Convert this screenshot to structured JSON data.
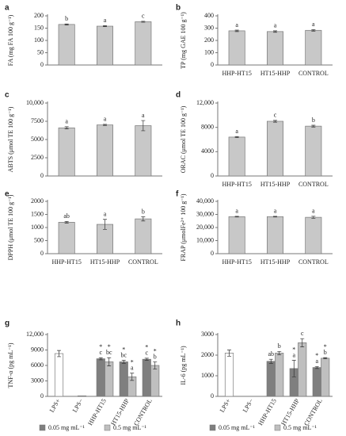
{
  "chart_data": [
    {
      "type": "bar",
      "panel": "a",
      "ylabel": "FA (mg FA 100 g⁻¹)",
      "categories": [
        null,
        null,
        null
      ],
      "ylim": [
        0,
        200
      ],
      "yticks": [
        0,
        50,
        100,
        150,
        200
      ],
      "series": [
        {
          "color": "#c8c8c8",
          "values": [
            165,
            158,
            176
          ],
          "errors": [
            2,
            2,
            2
          ],
          "letters": [
            "b",
            "a",
            "c"
          ]
        }
      ]
    },
    {
      "type": "bar",
      "panel": "b",
      "ylabel": "TP (mg GAE 100 g⁻¹)",
      "categories": [
        "HHP-HT15",
        "HT15-HHP",
        "CONTROL"
      ],
      "ylim": [
        0,
        400
      ],
      "yticks": [
        0,
        100,
        200,
        300,
        400
      ],
      "series": [
        {
          "color": "#c8c8c8",
          "values": [
            278,
            272,
            282
          ],
          "errors": [
            6,
            6,
            6
          ],
          "letters": [
            "a",
            "a",
            "a"
          ]
        }
      ]
    },
    {
      "type": "bar",
      "panel": "c",
      "ylabel": "ABTS (μmol TE 100 g⁻¹)",
      "categories": [
        null,
        null,
        null
      ],
      "ylim": [
        0,
        10000
      ],
      "yticks": [
        0,
        2500,
        5000,
        7500,
        {
          "value": 10000,
          "label": "10,000"
        }
      ],
      "series": [
        {
          "color": "#c8c8c8",
          "values": [
            6600,
            7000,
            6900
          ],
          "errors": [
            150,
            80,
            700
          ],
          "letters": [
            "a",
            "a",
            "a"
          ]
        }
      ]
    },
    {
      "type": "bar",
      "panel": "d",
      "ylabel": "ORAC (μmol TE 100 g⁻¹)",
      "categories": [
        "HHP-HT15",
        "HT15-HHP",
        "CONTROL"
      ],
      "ylim": [
        0,
        12000
      ],
      "yticks": [
        0,
        4000,
        8000,
        {
          "value": 12000,
          "label": "12,000"
        }
      ],
      "series": [
        {
          "color": "#c8c8c8",
          "values": [
            6400,
            9000,
            8200
          ],
          "errors": [
            100,
            150,
            150
          ],
          "letters": [
            "a",
            "c",
            "b"
          ]
        }
      ]
    },
    {
      "type": "bar",
      "panel": "e",
      "ylabel": "DPPH (μmol TE 100 g⁻¹)",
      "categories": [
        "HHP-HT15",
        "HT15-HHP",
        "CONTROL"
      ],
      "ylim": [
        0,
        2000
      ],
      "yticks": [
        0,
        500,
        1000,
        1500,
        2000
      ],
      "series": [
        {
          "color": "#c8c8c8",
          "values": [
            1200,
            1120,
            1330
          ],
          "errors": [
            30,
            190,
            80
          ],
          "letters": [
            "ab",
            "a",
            "b"
          ]
        }
      ]
    },
    {
      "type": "bar",
      "panel": "f",
      "ylabel": "FRAP (μmolFe²⁺ 100 g⁻¹)",
      "categories": [
        "HHP-HT15",
        "HT15-HHP",
        "CONTROL"
      ],
      "ylim": [
        0,
        40000
      ],
      "yticks": [
        0,
        {
          "value": 10000,
          "label": "10,000"
        },
        {
          "value": 20000,
          "label": "20,000"
        },
        {
          "value": 30000,
          "label": "30,000"
        },
        {
          "value": 40000,
          "label": "40,000"
        }
      ],
      "series": [
        {
          "color": "#c8c8c8",
          "values": [
            28300,
            28300,
            27800
          ],
          "errors": [
            300,
            300,
            800
          ],
          "letters": [
            "a",
            "a",
            "a"
          ]
        }
      ]
    },
    {
      "type": "bar",
      "panel": "g",
      "ylabel": "TNF-α (pg mL⁻¹)",
      "categories": [
        "LPS+",
        "LPS−",
        "HHP-HT15",
        "HT15-HHP",
        "CONTROL"
      ],
      "ylim": [
        0,
        12000
      ],
      "yticks": [
        0,
        3000,
        6000,
        9000,
        {
          "value": 12000,
          "label": "12,000"
        }
      ],
      "series": [
        {
          "color": "#ffffff",
          "values": [
            8300,
            100,
            null,
            null,
            null
          ],
          "errors": [
            600,
            null,
            null,
            null,
            null
          ]
        },
        {
          "name": "0.05 mg mL⁻¹",
          "color": "#7f7f7f",
          "values": [
            null,
            null,
            7300,
            6700,
            7200
          ],
          "errors": [
            null,
            null,
            200,
            300,
            200
          ],
          "letters": [
            null,
            null,
            "c",
            "bc",
            "c"
          ],
          "significance": [
            null,
            null,
            "*",
            "*",
            "*"
          ]
        },
        {
          "name": "0.5 mg mL⁻¹",
          "color": "#bfbfbf",
          "values": [
            null,
            null,
            6700,
            3800,
            6000
          ],
          "errors": [
            null,
            null,
            800,
            700,
            700
          ],
          "letters": [
            null,
            null,
            "bc",
            "a",
            "b"
          ],
          "significance": [
            null,
            null,
            "*",
            "*",
            "*"
          ]
        }
      ]
    },
    {
      "type": "bar",
      "panel": "h",
      "ylabel": "IL-6 (pg mL⁻¹)",
      "categories": [
        "LPS+",
        "LPS−",
        "HHP-HT15",
        "HT15-HHP",
        "CONTROL"
      ],
      "ylim": [
        0,
        3000
      ],
      "yticks": [
        0,
        1000,
        2000,
        3000
      ],
      "series": [
        {
          "color": "#ffffff",
          "values": [
            2100,
            0,
            null,
            null,
            null
          ],
          "errors": [
            150,
            null,
            null,
            null,
            null
          ]
        },
        {
          "name": "0.05 mg mL⁻¹",
          "color": "#7f7f7f",
          "values": [
            null,
            null,
            1700,
            1350,
            1400
          ],
          "errors": [
            null,
            null,
            100,
            400,
            50
          ],
          "letters": [
            null,
            null,
            "ab",
            "a",
            "a"
          ],
          "significance": [
            null,
            null,
            null,
            "*",
            "*"
          ]
        },
        {
          "name": "0.5 mg mL⁻¹",
          "color": "#bfbfbf",
          "values": [
            null,
            null,
            2100,
            2600,
            1850
          ],
          "errors": [
            null,
            null,
            80,
            200,
            30
          ],
          "letters": [
            null,
            null,
            "b",
            "c",
            "b"
          ],
          "significance": [
            null,
            null,
            null,
            null,
            "*"
          ]
        }
      ]
    }
  ]
}
